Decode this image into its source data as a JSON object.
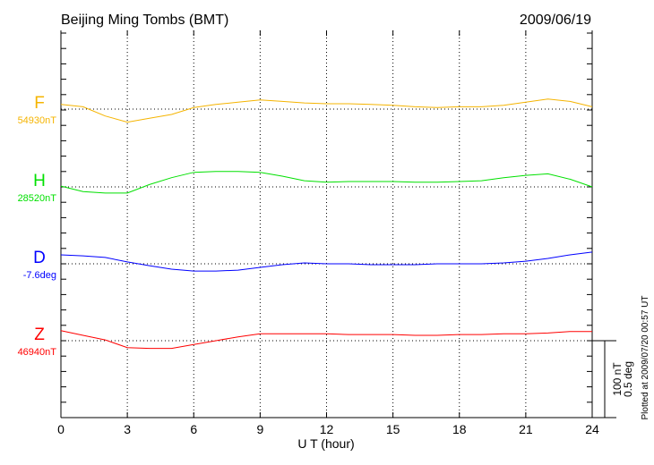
{
  "chart_data": {
    "type": "line",
    "title": "Beijing Ming Tombs (BMT)",
    "date": "2009/06/19",
    "xlabel": "U T (hour)",
    "xlim": [
      0,
      24
    ],
    "xticks": [
      "0",
      "3",
      "6",
      "9",
      "12",
      "15",
      "18",
      "21",
      "24"
    ],
    "grid": "dotted vertical every 3 hours, dotted baseline per component",
    "x": [
      0,
      1,
      2,
      3,
      4,
      5,
      6,
      7,
      8,
      9,
      10,
      11,
      12,
      13,
      14,
      15,
      16,
      17,
      18,
      19,
      20,
      21,
      22,
      23,
      24
    ],
    "scale_bar": {
      "line1": "100 nT",
      "line2": "0.5 deg"
    },
    "footer": "Plotted at 2009/07/20 00:57 UT",
    "series": [
      {
        "name": "F",
        "baseline_label": "54930nT",
        "unit": "nT",
        "color": "#f5b400",
        "values": [
          6,
          3,
          -9,
          -17,
          -12,
          -7,
          2,
          6,
          9,
          12,
          10,
          8,
          7,
          7,
          6,
          5,
          3,
          2,
          3,
          3,
          5,
          9,
          13,
          10,
          3
        ]
      },
      {
        "name": "H",
        "baseline_label": "28520nT",
        "unit": "nT",
        "color": "#00e000",
        "values": [
          1,
          -6,
          -8,
          -8,
          3,
          12,
          19,
          20,
          20,
          19,
          14,
          8,
          6,
          7,
          7,
          7,
          6,
          6,
          7,
          8,
          12,
          15,
          17,
          10,
          0
        ]
      },
      {
        "name": "D",
        "baseline_label": "-7.6deg",
        "unit": "deg",
        "color": "#0000ff",
        "values": [
          0.058,
          0.052,
          0.041,
          0.012,
          -0.012,
          -0.035,
          -0.047,
          -0.047,
          -0.041,
          -0.023,
          -0.006,
          0.006,
          0,
          0,
          -0.006,
          -0.006,
          -0.006,
          0,
          0,
          0,
          0.006,
          0.017,
          0.035,
          0.058,
          0.076
        ]
      },
      {
        "name": "Z",
        "baseline_label": "46940nT",
        "unit": "nT",
        "color": "#ff0000",
        "values": [
          13,
          7,
          1,
          -9,
          -10,
          -10,
          -5,
          0,
          5,
          9,
          9,
          9,
          9,
          8,
          8,
          8,
          7,
          7,
          8,
          8,
          9,
          9,
          10,
          12,
          12
        ]
      }
    ]
  }
}
